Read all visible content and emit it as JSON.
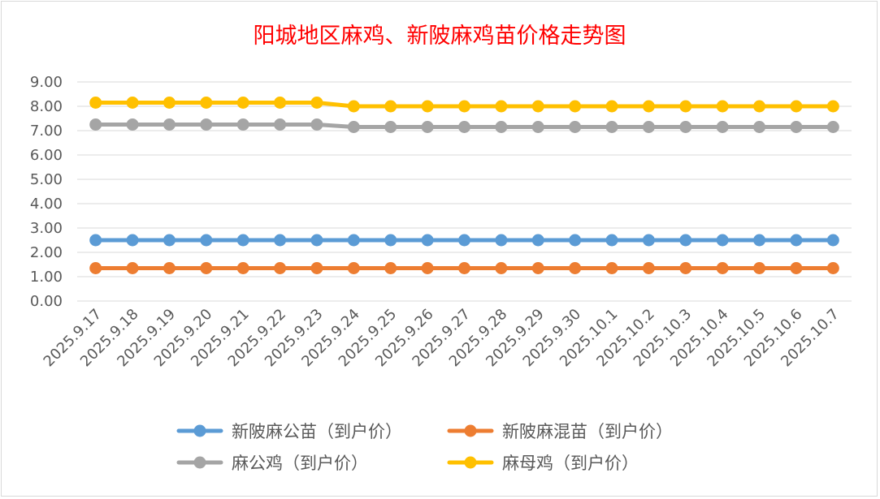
{
  "chart_data": {
    "type": "line",
    "title": "阳城地区麻鸡、新陂麻鸡苗价格走势图",
    "xlabel": "",
    "ylabel": "",
    "ylim": [
      0,
      9
    ],
    "yticks": [
      "0.00",
      "1.00",
      "2.00",
      "3.00",
      "4.00",
      "5.00",
      "6.00",
      "7.00",
      "8.00",
      "9.00"
    ],
    "grid": true,
    "legend_position": "bottom",
    "categories": [
      "2025.9.17",
      "2025.9.18",
      "2025.9.19",
      "2025.9.20",
      "2025.9.21",
      "2025.9.22",
      "2025.9.23",
      "2025.9.24",
      "2025.9.25",
      "2025.9.26",
      "2025.9.27",
      "2025.9.28",
      "2025.9.29",
      "2025.9.30",
      "2025.10.1",
      "2025.10.2",
      "2025.10.3",
      "2025.10.4",
      "2025.10.5",
      "2025.10.6",
      "2025.10.7"
    ],
    "series": [
      {
        "name": "新陂麻公苗（到户价）",
        "color": "#5b9bd5",
        "values": [
          2.5,
          2.5,
          2.5,
          2.5,
          2.5,
          2.5,
          2.5,
          2.5,
          2.5,
          2.5,
          2.5,
          2.5,
          2.5,
          2.5,
          2.5,
          2.5,
          2.5,
          2.5,
          2.5,
          2.5,
          2.5
        ]
      },
      {
        "name": "新陂麻混苗（到户价）",
        "color": "#ed7d31",
        "values": [
          1.35,
          1.35,
          1.35,
          1.35,
          1.35,
          1.35,
          1.35,
          1.35,
          1.35,
          1.35,
          1.35,
          1.35,
          1.35,
          1.35,
          1.35,
          1.35,
          1.35,
          1.35,
          1.35,
          1.35,
          1.35
        ]
      },
      {
        "name": "麻公鸡（到户价）",
        "color": "#a5a5a5",
        "values": [
          7.25,
          7.25,
          7.25,
          7.25,
          7.25,
          7.25,
          7.25,
          7.15,
          7.15,
          7.15,
          7.15,
          7.15,
          7.15,
          7.15,
          7.15,
          7.15,
          7.15,
          7.15,
          7.15,
          7.15,
          7.15
        ]
      },
      {
        "name": "麻母鸡（到户价）",
        "color": "#ffc000",
        "values": [
          8.15,
          8.15,
          8.15,
          8.15,
          8.15,
          8.15,
          8.15,
          8.0,
          8.0,
          8.0,
          8.0,
          8.0,
          8.0,
          8.0,
          8.0,
          8.0,
          8.0,
          8.0,
          8.0,
          8.0,
          8.0
        ]
      }
    ]
  }
}
